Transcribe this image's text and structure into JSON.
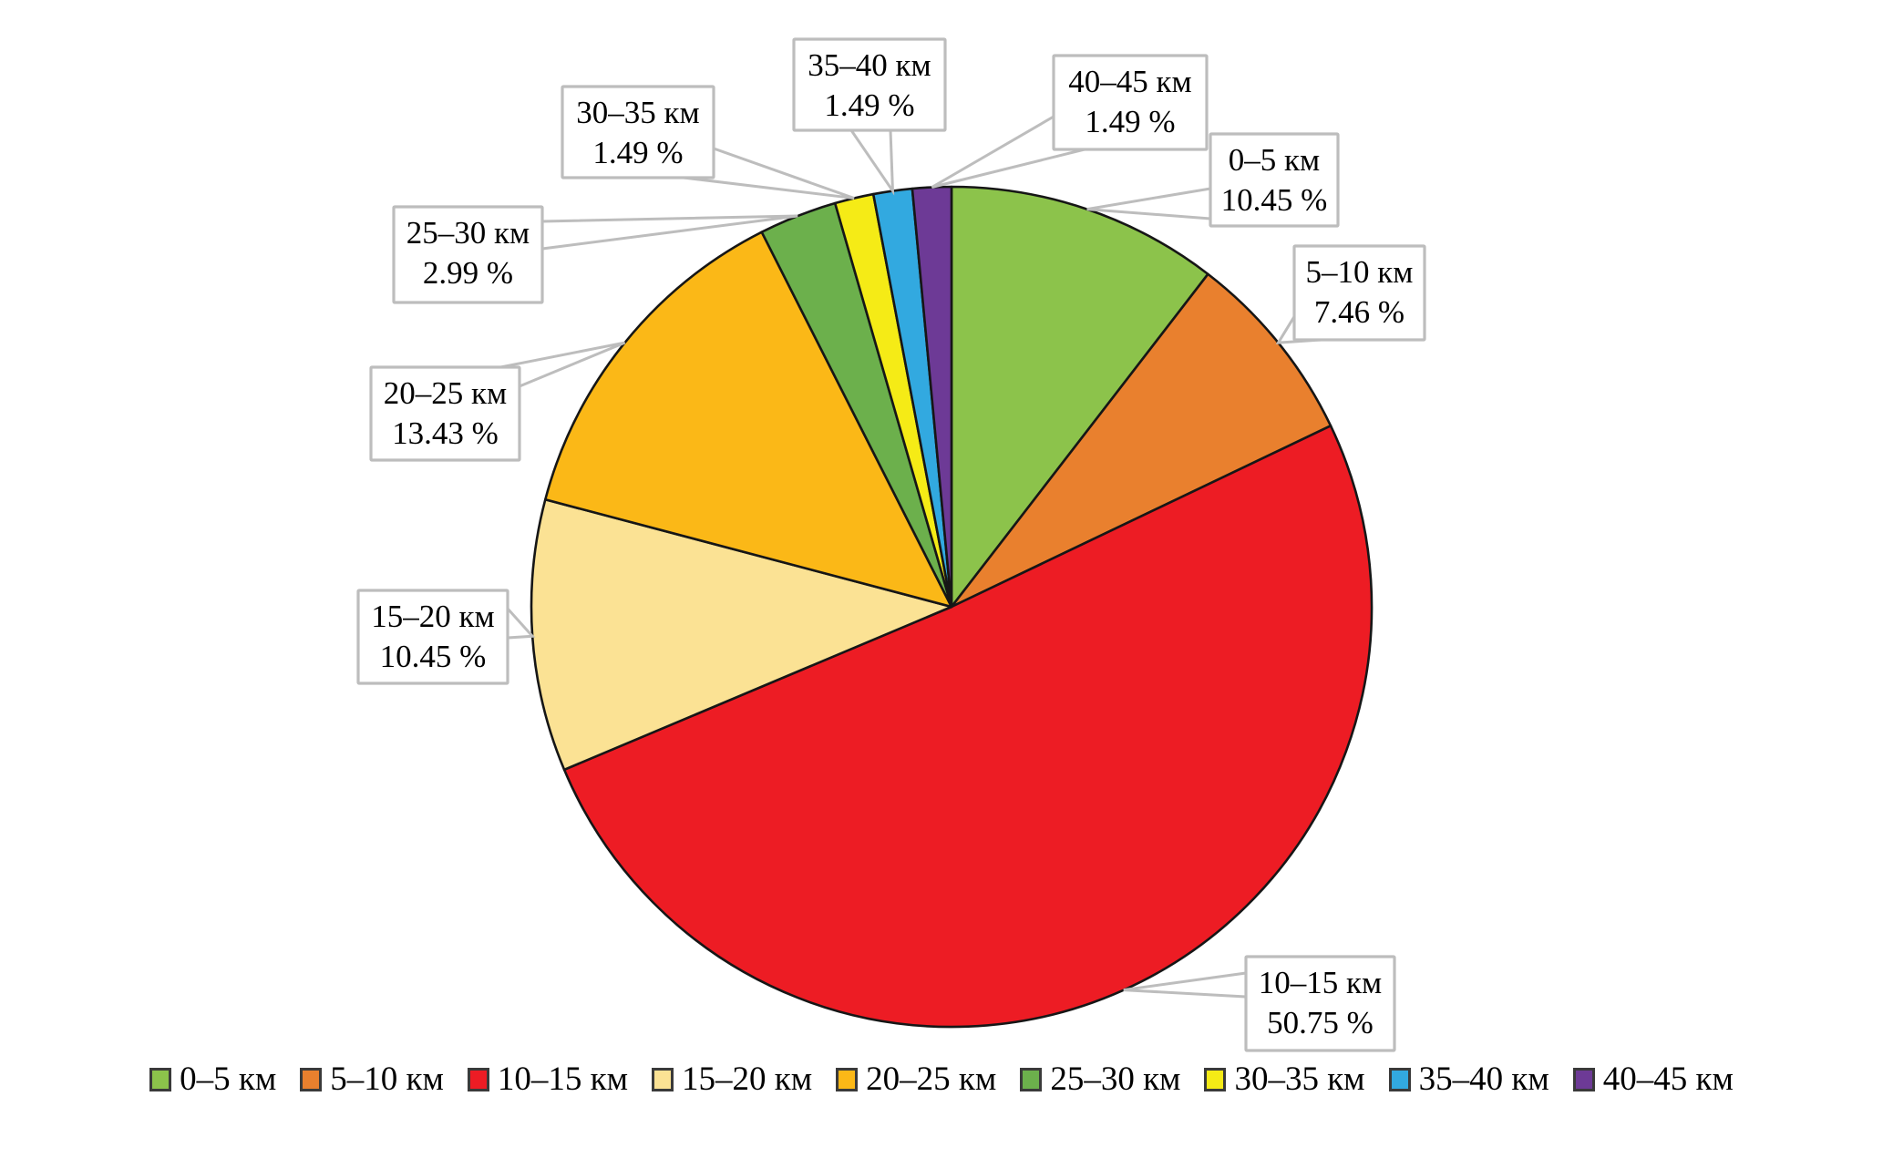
{
  "figure": {
    "background": "#ffffff",
    "callout_fill": "#ffffff",
    "callout_border_color": "#bdbdbd",
    "slice_outline_color": "#161616",
    "text_color": "#000000"
  },
  "chart_data": {
    "type": "pie",
    "title": "",
    "categories": [
      "0–5 км",
      "5–10 км",
      "10–15 км",
      "15–20 км",
      "20–25 км",
      "25–30 км",
      "30–35 км",
      "35–40 км",
      "40–45 км"
    ],
    "values": [
      10.45,
      7.46,
      50.75,
      10.45,
      13.43,
      2.99,
      1.49,
      1.49,
      1.49
    ],
    "value_labels": [
      "10.45 %",
      "7.46 %",
      "50.75 %",
      "10.45 %",
      "13.43 %",
      "2.99 %",
      "1.49 %",
      "1.49 %",
      "1.49 %"
    ],
    "unit": "%",
    "colors": [
      "#8cc34b",
      "#e9802e",
      "#ed1c24",
      "#fbe294",
      "#fbb817",
      "#6cb04c",
      "#f5eb16",
      "#32a9e0",
      "#6d3a96"
    ],
    "start_angle_deg": 0,
    "direction": "clockwise",
    "legend_position": "bottom",
    "annotations": [
      "0–5 км 10.45 %",
      "5–10 км 7.46 %",
      "10–15 км 50.75 %",
      "15–20 км 10.45 %",
      "20–25 км 13.43 %",
      "25–30 км 2.99 %",
      "30–35 км 1.49 %",
      "35–40 км 1.49 %",
      "40–45 км 1.49 %"
    ]
  }
}
